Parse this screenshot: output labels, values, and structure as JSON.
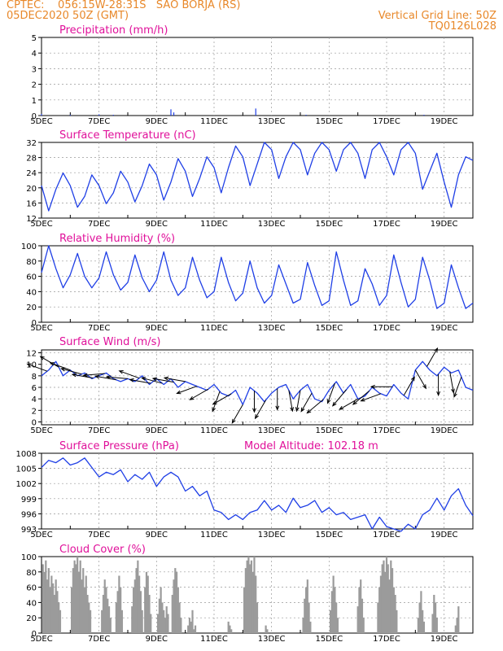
{
  "header": {
    "line1_left": "CPTEC:    056:15W-28:31S   SAO BORJA (RS)",
    "line2_left": "05DEC2020 50Z (GMT)",
    "line1_right": "Vertical Grid Line: 50Z",
    "line2_right": "TQ0126L028"
  },
  "colors": {
    "header_text": "#e8882a",
    "panel_title": "#e0109a",
    "series_line": "#1f3fe6",
    "wind_arrow": "#000000",
    "cloud_bars": "#9b9b9b",
    "grid": "#999999"
  },
  "x_ticks": [
    "5DEC",
    "7DEC",
    "9DEC",
    "11DEC",
    "13DEC",
    "15DEC",
    "17DEC",
    "19DEC"
  ],
  "chart_data": [
    {
      "type": "bar",
      "title": "Precipitation (mm/h)",
      "x_days": [
        5,
        6,
        7,
        7.5,
        9.5,
        9.6,
        12.45,
        14.2,
        18.3
      ],
      "values": [
        0.1,
        0.05,
        0.08,
        0.05,
        0.4,
        0.2,
        0.45,
        0.05,
        0.05
      ],
      "ylim": [
        0,
        5
      ],
      "y_ticks": [
        "0",
        "1",
        "2",
        "3",
        "4",
        "5"
      ],
      "grid": true
    },
    {
      "type": "line",
      "title": "Surface Temperature (nC)",
      "x_days": [
        5,
        5.25,
        5.5,
        5.75,
        6,
        6.25,
        6.5,
        6.75,
        7,
        7.25,
        7.5,
        7.75,
        8,
        8.25,
        8.5,
        8.75,
        9,
        9.25,
        9.5,
        9.75,
        10,
        10.25,
        10.5,
        10.75,
        11,
        11.25,
        11.5,
        11.75,
        12,
        12.25,
        12.5,
        12.75,
        13,
        13.25,
        13.5,
        13.75,
        14,
        14.25,
        14.5,
        14.75,
        15,
        15.25,
        15.5,
        15.75,
        16,
        16.25,
        16.5,
        16.75,
        17,
        17.25,
        17.5,
        17.75,
        18,
        18.25,
        18.5,
        18.75,
        19,
        19.25,
        19.5,
        19.75,
        20
      ],
      "values": [
        21,
        14,
        20,
        24.5,
        21,
        15,
        18,
        24,
        21,
        16,
        19,
        25,
        22,
        16.5,
        21,
        27,
        24,
        17,
        22,
        28.5,
        25,
        18,
        23,
        29,
        26,
        19,
        26,
        32,
        29,
        21,
        27,
        33,
        31,
        23,
        29,
        33,
        31,
        24,
        30,
        33,
        31,
        25,
        31,
        33,
        30,
        23,
        31,
        33,
        29,
        24,
        31,
        33,
        30,
        20,
        25,
        30,
        22,
        15,
        24,
        29,
        28
      ],
      "ylim": [
        12,
        33
      ],
      "y_ticks": [
        "12",
        "16",
        "20",
        "24",
        "28",
        "32"
      ],
      "grid": true
    },
    {
      "type": "line",
      "title": "Relative Humidity (%)",
      "x_days": [
        5,
        5.25,
        5.5,
        5.75,
        6,
        6.25,
        6.5,
        6.75,
        7,
        7.25,
        7.5,
        7.75,
        8,
        8.25,
        8.5,
        8.75,
        9,
        9.25,
        9.5,
        9.75,
        10,
        10.25,
        10.5,
        10.75,
        11,
        11.25,
        11.5,
        11.75,
        12,
        12.25,
        12.5,
        12.75,
        13,
        13.25,
        13.5,
        13.75,
        14,
        14.25,
        14.5,
        14.75,
        15,
        15.25,
        15.5,
        15.75,
        16,
        16.25,
        16.5,
        16.75,
        17,
        17.25,
        17.5,
        17.75,
        18,
        18.25,
        18.5,
        18.75,
        19,
        19.25,
        19.5,
        19.75,
        20
      ],
      "values": [
        65,
        100,
        70,
        45,
        62,
        90,
        60,
        45,
        58,
        92,
        62,
        42,
        52,
        88,
        58,
        40,
        55,
        92,
        55,
        35,
        45,
        85,
        55,
        32,
        40,
        85,
        52,
        28,
        38,
        80,
        45,
        25,
        35,
        75,
        50,
        25,
        30,
        78,
        48,
        22,
        28,
        92,
        55,
        22,
        28,
        70,
        50,
        22,
        35,
        88,
        52,
        20,
        30,
        85,
        55,
        18,
        25,
        75,
        45,
        18,
        25
      ],
      "ylim": [
        0,
        100
      ],
      "y_ticks": [
        "0",
        "20",
        "40",
        "60",
        "80",
        "100"
      ],
      "grid": true
    },
    {
      "type": "line",
      "title": "Surface Wind (m/s)",
      "x_days": [
        5,
        5.25,
        5.5,
        5.75,
        6,
        6.25,
        6.5,
        6.75,
        7,
        7.25,
        7.5,
        7.75,
        8,
        8.25,
        8.5,
        8.75,
        9,
        9.25,
        9.5,
        9.75,
        10,
        10.25,
        10.5,
        10.75,
        11,
        11.25,
        11.5,
        11.75,
        12,
        12.25,
        12.5,
        12.75,
        13,
        13.25,
        13.5,
        13.75,
        14,
        14.25,
        14.5,
        14.75,
        15,
        15.25,
        15.5,
        15.75,
        16,
        16.25,
        16.5,
        16.75,
        17,
        17.25,
        17.5,
        17.75,
        18,
        18.25,
        18.5,
        18.75,
        19,
        19.25,
        19.5,
        19.75,
        20
      ],
      "values": [
        8,
        9,
        10.5,
        8,
        9,
        8,
        8.5,
        7.5,
        8,
        8.5,
        7.5,
        7,
        7.5,
        7,
        8,
        6.5,
        7.5,
        6.5,
        7.5,
        6,
        7,
        6.5,
        6,
        5.5,
        6.5,
        5,
        4.5,
        5.5,
        3,
        6,
        5,
        3.5,
        5,
        6,
        6.5,
        4,
        5.5,
        6.5,
        4,
        3.5,
        5.5,
        7,
        5,
        6.5,
        4,
        4.5,
        6,
        5,
        4.5,
        6.5,
        5,
        4,
        9,
        10.5,
        9,
        8,
        9.5,
        8.5,
        9,
        6,
        5.5
      ],
      "ylim": [
        -0.5,
        12.5
      ],
      "y_ticks": [
        "0",
        "2",
        "4",
        "6",
        "8",
        "10",
        "12"
      ],
      "vectors_days": [
        5.2,
        5.6,
        6,
        6.4,
        6.8,
        7.2,
        7.6,
        8,
        8.4,
        8.8,
        9.2,
        9.6,
        10,
        10.4,
        10.8,
        11.2,
        11.6,
        12,
        12.4,
        12.8,
        13.2,
        13.6,
        14,
        14.4,
        14.8,
        15.2,
        15.6,
        16,
        16.4,
        16.8,
        17.2,
        17.6,
        18,
        18.4,
        18.8,
        19.2,
        19.6
      ],
      "vectors_deg": [
        200,
        210,
        200,
        195,
        190,
        175,
        190,
        185,
        200,
        190,
        195,
        190,
        190,
        160,
        150,
        110,
        150,
        120,
        90,
        120,
        90,
        80,
        100,
        120,
        140,
        110,
        130,
        150,
        140,
        160,
        180,
        300,
        60,
        300,
        90,
        80,
        110
      ],
      "grid": true
    },
    {
      "type": "line",
      "title": "Surface Pressure (hPa)",
      "annotation": "Model Altitude: 102.18 m",
      "x_days": [
        5,
        5.25,
        5.5,
        5.75,
        6,
        6.25,
        6.5,
        6.75,
        7,
        7.25,
        7.5,
        7.75,
        8,
        8.25,
        8.5,
        8.75,
        9,
        9.25,
        9.5,
        9.75,
        10,
        10.25,
        10.5,
        10.75,
        11,
        11.25,
        11.5,
        11.75,
        12,
        12.25,
        12.5,
        12.75,
        13,
        13.25,
        13.5,
        13.75,
        14,
        14.25,
        14.5,
        14.75,
        15,
        15.25,
        15.5,
        15.75,
        16,
        16.25,
        16.5,
        16.75,
        17,
        17.25,
        17.5,
        17.75,
        18,
        18.25,
        18.5,
        18.75,
        19,
        19.25,
        19.5,
        19.75,
        20
      ],
      "values": [
        1006,
        1007.5,
        1007,
        1008,
        1006.5,
        1007,
        1008,
        1006,
        1004,
        1005,
        1004.5,
        1005.5,
        1003,
        1004.5,
        1003.5,
        1005,
        1002,
        1004,
        1005,
        1004,
        1001,
        1002,
        1000,
        1001,
        997,
        996.5,
        995,
        996,
        995,
        996.5,
        997,
        999,
        997,
        998,
        996.5,
        999.5,
        997.5,
        998,
        999,
        996.5,
        997.5,
        996,
        996.5,
        995,
        995.5,
        996,
        993,
        995.5,
        993.5,
        993,
        992.5,
        994,
        993,
        996,
        997,
        999.5,
        997,
        1000,
        1001.5,
        998,
        995.8
      ],
      "ylim": [
        993,
        1009
      ],
      "y_ticks": [
        "993",
        "996",
        "999",
        "1002",
        "1005",
        "1008"
      ],
      "grid": true
    },
    {
      "type": "bar",
      "title": "Cloud Cover (%)",
      "x_days": [
        5.05,
        5.1,
        5.15,
        5.2,
        5.25,
        5.3,
        5.35,
        5.4,
        5.45,
        5.5,
        5.55,
        5.6,
        5.65,
        6.05,
        6.1,
        6.15,
        6.2,
        6.25,
        6.3,
        6.35,
        6.4,
        6.45,
        6.5,
        6.55,
        6.6,
        6.65,
        6.7,
        7.1,
        7.15,
        7.2,
        7.25,
        7.3,
        7.35,
        7.4,
        7.6,
        7.65,
        7.7,
        7.75,
        7.8,
        8.15,
        8.2,
        8.25,
        8.3,
        8.35,
        8.4,
        8.45,
        8.5,
        8.6,
        8.65,
        8.7,
        8.75,
        8.8,
        9.05,
        9.1,
        9.15,
        9.2,
        9.25,
        9.3,
        9.35,
        9.4,
        9.55,
        9.6,
        9.65,
        9.7,
        9.75,
        9.8,
        9.85,
        10.1,
        10.15,
        10.2,
        10.25,
        10.3,
        10.35,
        11.5,
        11.55,
        11.6,
        12.05,
        12.1,
        12.15,
        12.2,
        12.25,
        12.3,
        12.35,
        12.4,
        12.45,
        12.5,
        12.8,
        12.85,
        14.1,
        14.15,
        14.2,
        14.25,
        14.3,
        14.35,
        15.05,
        15.1,
        15.15,
        15.2,
        15.25,
        15.3,
        16.0,
        16.05,
        16.1,
        16.15,
        16.2,
        16.7,
        16.75,
        16.8,
        16.85,
        16.9,
        16.95,
        17.0,
        17.05,
        17.1,
        17.15,
        17.2,
        17.25,
        17.3,
        17.35,
        18.1,
        18.15,
        18.2,
        18.25,
        18.3,
        18.6,
        18.65,
        18.7,
        18.75,
        19.4,
        19.45,
        19.5
      ],
      "values": [
        90,
        80,
        95,
        70,
        85,
        60,
        75,
        65,
        50,
        70,
        55,
        40,
        30,
        60,
        85,
        95,
        90,
        100,
        80,
        95,
        70,
        85,
        60,
        75,
        50,
        40,
        30,
        30,
        50,
        70,
        60,
        45,
        35,
        20,
        40,
        55,
        75,
        60,
        30,
        35,
        60,
        70,
        85,
        95,
        75,
        55,
        30,
        60,
        80,
        75,
        50,
        25,
        25,
        45,
        60,
        40,
        30,
        20,
        35,
        25,
        50,
        70,
        85,
        80,
        60,
        40,
        20,
        10,
        20,
        15,
        30,
        5,
        10,
        15,
        10,
        5,
        60,
        85,
        95,
        100,
        90,
        95,
        80,
        100,
        75,
        40,
        10,
        5,
        20,
        45,
        60,
        70,
        40,
        15,
        30,
        55,
        75,
        60,
        40,
        20,
        35,
        60,
        70,
        45,
        20,
        40,
        60,
        75,
        90,
        95,
        80,
        100,
        90,
        70,
        95,
        85,
        60,
        50,
        30,
        20,
        40,
        55,
        30,
        15,
        25,
        50,
        40,
        20,
        10,
        20,
        35
      ],
      "ylim": [
        0,
        100
      ],
      "y_ticks": [
        "0",
        "20",
        "40",
        "60",
        "80",
        "100"
      ],
      "grid": true
    }
  ]
}
